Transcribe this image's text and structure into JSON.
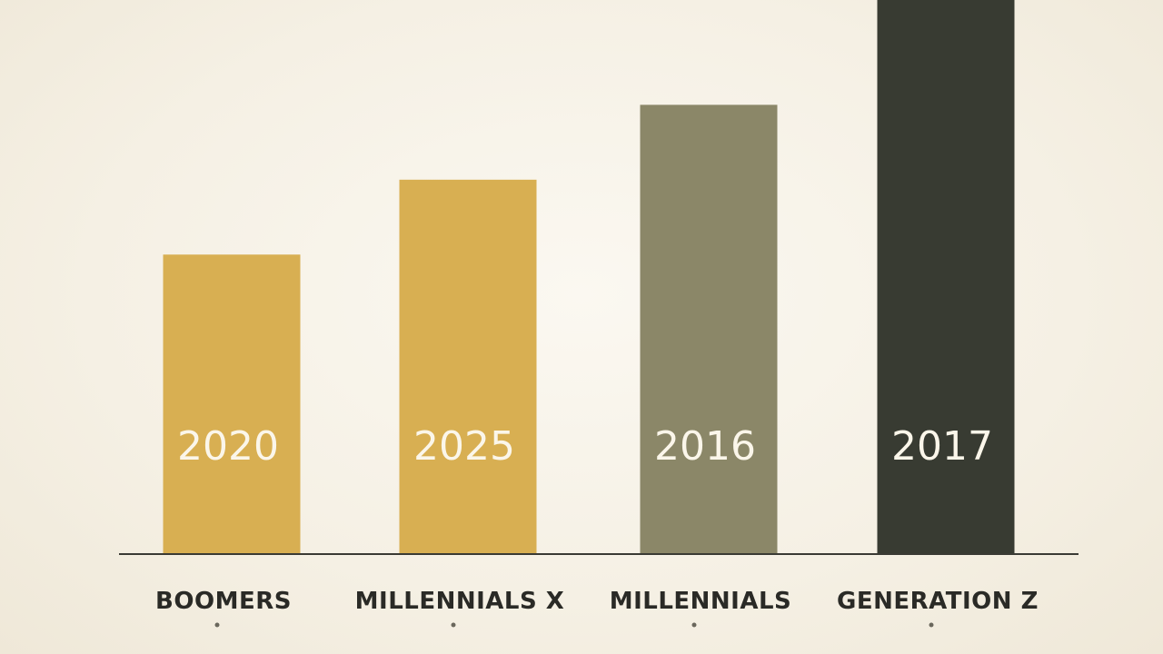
{
  "chart_data": {
    "type": "bar",
    "categories": [
      "BOOMERS",
      "MILLENNIALS X",
      "MILLENNIALS",
      "GENERATION Z"
    ],
    "values": [
      40,
      50,
      60,
      75
    ],
    "data_labels": [
      "2020",
      "2025",
      "2016",
      "2017"
    ],
    "ylim": [
      0,
      74
    ],
    "grid": false,
    "legend": "none",
    "colors": [
      "#d8af52",
      "#d8af52",
      "#8b8768",
      "#383b32"
    ],
    "title": "",
    "xlabel": "",
    "ylabel": ""
  }
}
